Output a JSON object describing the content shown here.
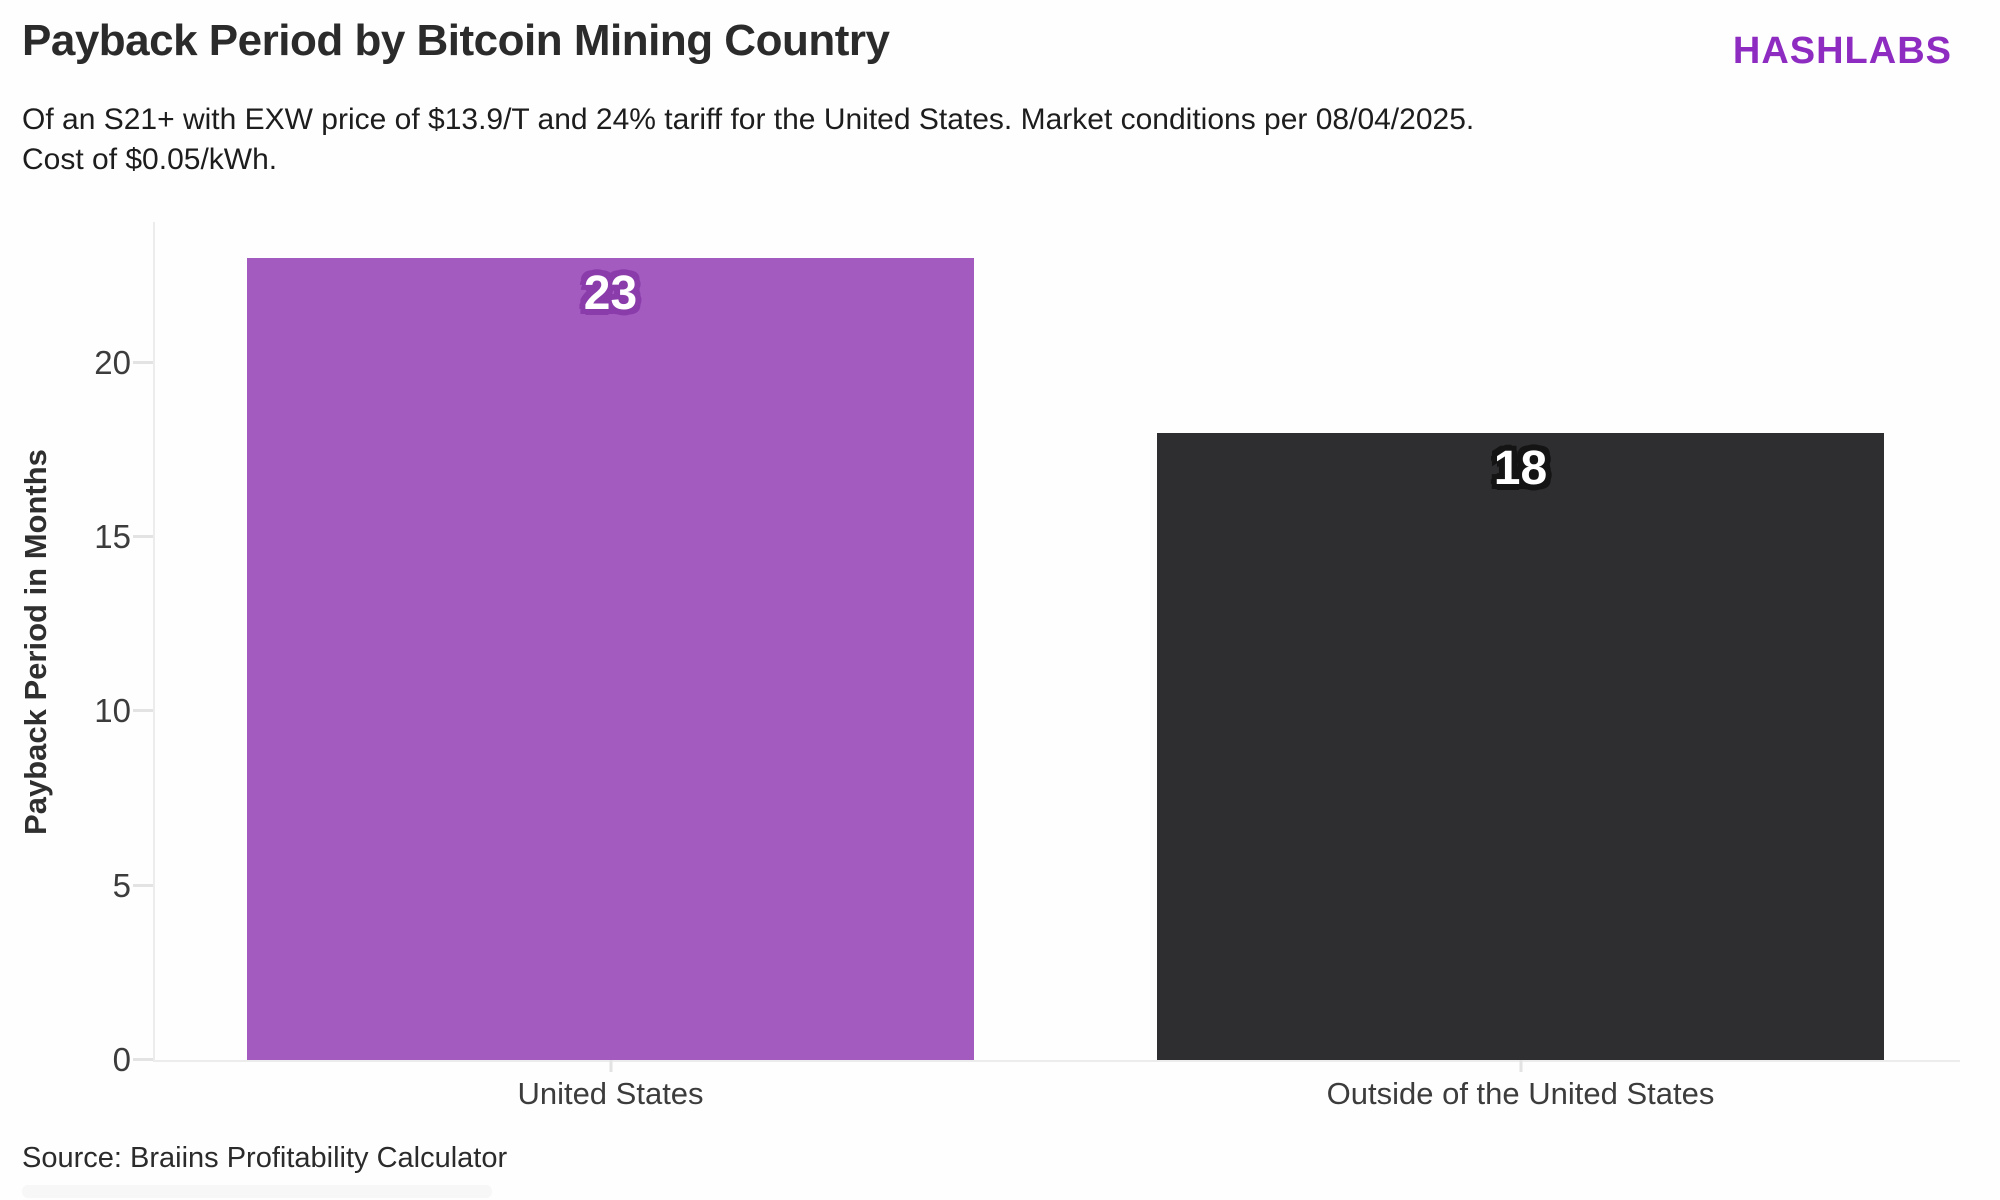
{
  "header": {
    "title": "Payback Period by Bitcoin Mining Country",
    "subtitle": "Of an S21+ with EXW price of $13.9/T and 24% tariff for the United States. Market conditions per 08/04/2025. Cost of $0.05/kWh.",
    "logo": "HASHLABS"
  },
  "footer": {
    "source": "Source: Braiins Profitability Calculator"
  },
  "colors": {
    "logo_purple": "#8E2CC2",
    "bar_purple": "#A35BC0",
    "bar_dark": "#2E2E30",
    "value_outline_purple": "#8A3CAA",
    "value_outline_dark": "#141414",
    "axis_line": "#ECECEC",
    "tick_dash": "#E3E3E3",
    "text_dark": "#2B2B2B"
  },
  "chart_data": {
    "type": "bar",
    "title": "Payback Period by Bitcoin Mining Country",
    "categories": [
      "United States",
      "Outside of the United States"
    ],
    "values": [
      23,
      18
    ],
    "value_labels": [
      "23",
      "18"
    ],
    "bar_colors": [
      "#A35BC0",
      "#2E2E30"
    ],
    "value_outline_colors": [
      "#8A3CAA",
      "#141414"
    ],
    "xlabel": "",
    "ylabel": "Payback Period in Months",
    "yticks": [
      0,
      5,
      10,
      15,
      20
    ],
    "ylim": [
      0,
      24.1
    ],
    "grid": false,
    "legend": false
  }
}
